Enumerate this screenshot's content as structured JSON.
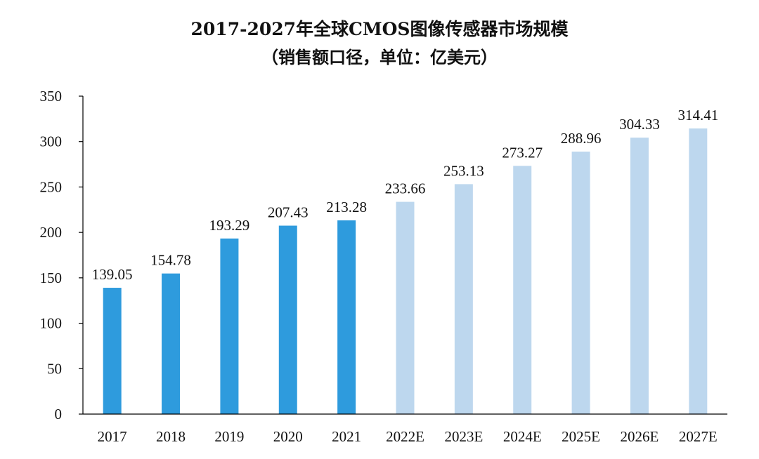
{
  "title_line1": "2017-2027年全球CMOS图像传感器市场规模",
  "title_line2": "（销售额口径，单位：亿美元）",
  "colors": {
    "actual": "#2E9BDD",
    "estimate": "#BDD7EE",
    "axis": "#000000"
  },
  "chart_data": {
    "type": "bar",
    "title": "2017-2027年全球CMOS图像传感器市场规模（销售额口径，单位：亿美元）",
    "categories": [
      "2017",
      "2018",
      "2019",
      "2020",
      "2021",
      "2022E",
      "2023E",
      "2024E",
      "2025E",
      "2026E",
      "2027E"
    ],
    "values": [
      139.05,
      154.78,
      193.29,
      207.43,
      213.28,
      233.66,
      253.13,
      273.27,
      288.96,
      304.33,
      314.41
    ],
    "value_labels": [
      "139.05",
      "154.78",
      "193.29",
      "207.43",
      "213.28",
      "233.66",
      "253.13",
      "273.27",
      "288.96",
      "304.33",
      "314.41"
    ],
    "estimate_flags": [
      false,
      false,
      false,
      false,
      false,
      true,
      true,
      true,
      true,
      true,
      true
    ],
    "ylim": [
      0,
      350
    ],
    "yticks": [
      0,
      50,
      100,
      150,
      200,
      250,
      300,
      350
    ],
    "xlabel": "",
    "ylabel": "",
    "grid": false,
    "legend": "none"
  }
}
